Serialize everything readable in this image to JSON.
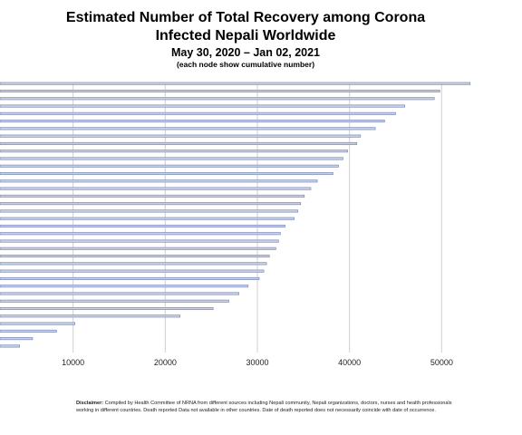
{
  "header": {
    "title_line1": "Estimated Number of Total Recovery among Corona",
    "title_line2": "Infected Nepali Worldwide",
    "subtitle": "May 30, 2020 – Jan 02, 2021",
    "note": "(each node show cumulative number)"
  },
  "disclaimer": {
    "label": "Disclaimer:",
    "text": " Compiled by Health Committee of NRNA from different sources including Nepali community, Nepali organizations, doctors, nurses and health professionals working in different countries. Death reported Data not available in other countries. Date of death reported does not necessarily coincide with date of occurrence."
  },
  "colors": {
    "bar": "#c9cfe6",
    "bar_edge": "#6f7fb0",
    "grid": "#d0d0d0"
  },
  "chart_data": {
    "type": "bar",
    "orientation": "horizontal",
    "title": "Estimated Number of Total Recovery among Corona Infected Nepali Worldwide",
    "subtitle": "May 30, 2020 – Jan 02, 2021",
    "xlabel": "",
    "ylabel": "",
    "xlim": [
      0,
      60000
    ],
    "xticks": [
      10000,
      20000,
      30000,
      40000,
      50000
    ],
    "grid": true,
    "legend": "none",
    "values": [
      53100,
      49800,
      49200,
      46000,
      45000,
      43800,
      42800,
      41200,
      40800,
      39800,
      39300,
      38800,
      38200,
      36500,
      35800,
      35100,
      34700,
      34400,
      34000,
      33000,
      32500,
      32300,
      32000,
      31300,
      31000,
      30700,
      30200,
      29000,
      28000,
      26900,
      25200,
      21600,
      10200,
      8200,
      5600,
      4200
    ]
  }
}
